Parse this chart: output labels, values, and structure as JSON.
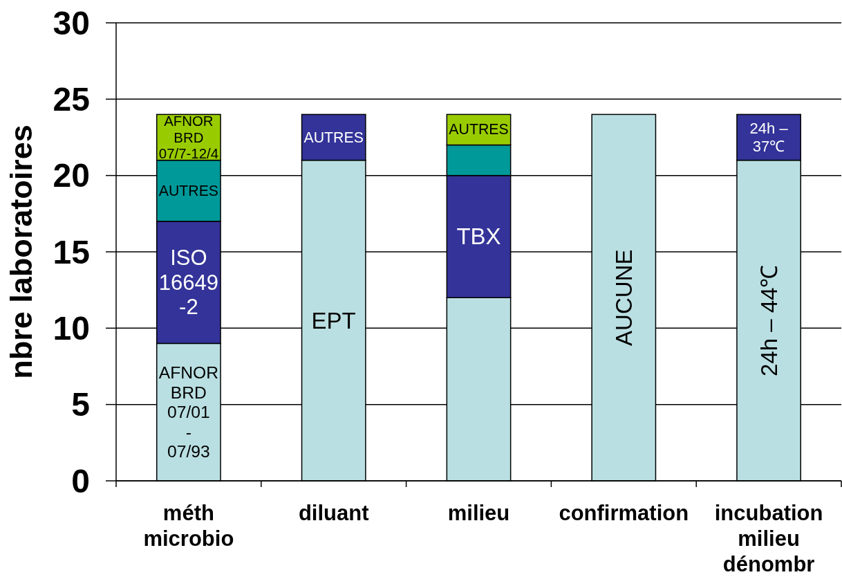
{
  "chart_data": {
    "type": "bar",
    "ylabel": "nbre laboratoires",
    "categories": [
      "méth microbio",
      "diluant",
      "milieu",
      "confirmation",
      "incubation milieu dénombr"
    ],
    "stacked": true,
    "ylim": [
      0,
      30
    ],
    "yticks": [
      0,
      5,
      10,
      15,
      20,
      25,
      30
    ],
    "grid": "y",
    "series": [
      {
        "name": "AFNOR BRD 07/01 - 07/93",
        "color": "#badfe2",
        "values": [
          9,
          null,
          null,
          null,
          null
        ]
      },
      {
        "name": "EPT",
        "color": "#badfe2",
        "values": [
          null,
          21,
          null,
          null,
          null
        ]
      },
      {
        "color": "#badfe2",
        "values": [
          null,
          null,
          12,
          null,
          null
        ]
      },
      {
        "name": "AUCUNE",
        "color": "#badfe2",
        "values": [
          null,
          null,
          null,
          24,
          null
        ]
      },
      {
        "name": "24h – 44℃",
        "color": "#badfe2",
        "values": [
          null,
          null,
          null,
          null,
          21
        ]
      },
      {
        "name": "ISO 16649-2",
        "color": "#333399",
        "values": [
          8,
          null,
          null,
          null,
          null
        ]
      },
      {
        "name": "AUTRES",
        "color": "#333399",
        "values": [
          null,
          3,
          null,
          null,
          null
        ]
      },
      {
        "name": "TBX",
        "color": "#333399",
        "values": [
          null,
          null,
          8,
          null,
          null
        ]
      },
      {
        "name": "24h – 37℃",
        "color": "#333399",
        "values": [
          null,
          null,
          null,
          null,
          3
        ]
      },
      {
        "name": "AUTRES",
        "color": "#009999",
        "values": [
          4,
          null,
          null,
          null,
          null
        ]
      },
      {
        "color": "#009999",
        "values": [
          null,
          null,
          2,
          null,
          null
        ]
      },
      {
        "name": "AFNOR BRD 07/7-12/4",
        "color": "#99cc00",
        "values": [
          3,
          null,
          null,
          null,
          null
        ]
      },
      {
        "name": "AUTRES",
        "color": "#99cc00",
        "values": [
          null,
          null,
          2,
          null,
          null
        ]
      }
    ]
  }
}
